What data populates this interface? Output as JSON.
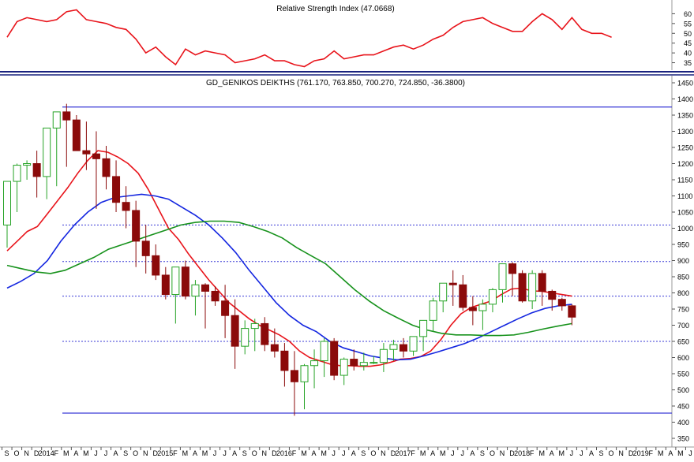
{
  "colors": {
    "rsi_line": "#e8141b",
    "up_candle_border": "#26a326",
    "up_candle_fill": "#ffffff",
    "down_candle": "#8b0a0a",
    "ma_red": "#e8141b",
    "ma_blue": "#1426e0",
    "ma_green": "#17921c",
    "solid_levels": "#3a3ad6",
    "dotted_levels": "#3a3ad6",
    "separator": "#1a237e",
    "gridlines": "#9a9a9a"
  },
  "chart_data": [
    {
      "type": "line",
      "title": "Relative Strength Index (47.0668)",
      "y_ticks": [
        "60",
        "55",
        "50",
        "45",
        "40",
        "35"
      ],
      "ylim": [
        32,
        65
      ],
      "x_start": 0,
      "x_step": 1,
      "values": [
        48,
        56,
        58,
        57,
        56,
        57,
        61,
        62,
        57,
        56,
        55,
        53,
        52,
        47,
        40,
        43,
        38,
        34,
        42,
        39,
        41,
        40,
        39,
        35,
        36,
        37,
        39,
        36,
        36,
        34,
        33,
        36,
        37,
        41,
        37,
        38,
        39,
        39,
        41,
        43,
        44,
        42,
        44,
        47,
        49,
        53,
        56,
        57,
        58,
        55,
        53,
        51,
        51,
        56,
        60,
        57,
        52,
        58,
        52,
        50,
        50,
        48
      ]
    },
    {
      "type": "candlestick",
      "title": "GD_GENIKOS DEIKTHS (761.170, 763.850, 700.270, 724.850, -36.3800)",
      "y_ticks": [
        "1450",
        "1400",
        "1350",
        "1300",
        "1250",
        "1200",
        "1150",
        "1100",
        "1050",
        "1000",
        "950",
        "900",
        "850",
        "800",
        "750",
        "700",
        "650",
        "600",
        "550",
        "500",
        "450",
        "400",
        "350"
      ],
      "ylim": [
        335,
        1460
      ],
      "x_tick_labels": [
        "S",
        "O",
        "N",
        "D",
        "2014",
        "F",
        "M",
        "A",
        "M",
        "J",
        "J",
        "A",
        "S",
        "O",
        "N",
        "D",
        "2015",
        "F",
        "M",
        "A",
        "M",
        "J",
        "J",
        "A",
        "S",
        "O",
        "N",
        "D",
        "2016",
        "F",
        "M",
        "A",
        "M",
        "J",
        "J",
        "A",
        "S",
        "O",
        "N",
        "D",
        "2017",
        "F",
        "M",
        "A",
        "M",
        "J",
        "J",
        "A",
        "S",
        "O",
        "N",
        "D",
        "2018",
        "F",
        "M",
        "A",
        "M",
        "J",
        "J",
        "A",
        "S",
        "O",
        "N",
        "D",
        "2019",
        "F",
        "M",
        "A",
        "M",
        "J"
      ],
      "candles": {
        "open": [
          1010,
          1145,
          1195,
          1200,
          1160,
          1310,
          1360,
          1335,
          1240,
          1230,
          1215,
          1160,
          1080,
          1055,
          960,
          915,
          855,
          795,
          880,
          790,
          825,
          805,
          775,
          730,
          635,
          690,
          705,
          640,
          620,
          560,
          525,
          575,
          590,
          650,
          545,
          595,
          575,
          585,
          585,
          625,
          640,
          620,
          665,
          715,
          775,
          830,
          825,
          755,
          745,
          765,
          810,
          890,
          860,
          775,
          860,
          805,
          780,
          760
        ],
        "high": [
          1080,
          1200,
          1210,
          1240,
          1240,
          1360,
          1385,
          1350,
          1330,
          1300,
          1255,
          1210,
          1130,
          1085,
          1010,
          950,
          880,
          810,
          900,
          840,
          830,
          820,
          825,
          780,
          715,
          720,
          725,
          690,
          645,
          620,
          580,
          625,
          660,
          660,
          600,
          625,
          615,
          605,
          645,
          655,
          660,
          650,
          715,
          785,
          820,
          870,
          855,
          790,
          780,
          815,
          880,
          895,
          870,
          870,
          870,
          810,
          785,
          765
        ],
        "low": [
          940,
          1050,
          1150,
          1095,
          1090,
          1130,
          1190,
          1240,
          1180,
          1060,
          1120,
          1050,
          1000,
          880,
          860,
          840,
          780,
          705,
          780,
          730,
          690,
          760,
          660,
          565,
          610,
          620,
          620,
          600,
          510,
          420,
          440,
          505,
          540,
          530,
          515,
          560,
          560,
          580,
          555,
          590,
          600,
          605,
          620,
          680,
          740,
          760,
          745,
          700,
          685,
          740,
          770,
          790,
          770,
          750,
          760,
          745,
          745,
          700
        ],
        "close": [
          1145,
          1195,
          1200,
          1160,
          1310,
          1360,
          1335,
          1240,
          1230,
          1215,
          1160,
          1080,
          1055,
          960,
          915,
          855,
          795,
          880,
          790,
          825,
          805,
          775,
          730,
          635,
          690,
          705,
          640,
          620,
          560,
          525,
          575,
          590,
          650,
          545,
          595,
          575,
          585,
          585,
          625,
          640,
          620,
          665,
          715,
          775,
          830,
          825,
          755,
          745,
          765,
          810,
          890,
          860,
          775,
          860,
          805,
          780,
          760,
          725
        ]
      },
      "series": [
        {
          "color_key": "ma_red",
          "x_start": 0,
          "values": [
            930,
            960,
            990,
            1005,
            1045,
            1085,
            1125,
            1170,
            1210,
            1240,
            1235,
            1220,
            1200,
            1170,
            1120,
            1060,
            1000,
            965,
            920,
            880,
            840,
            805,
            770,
            745,
            720,
            700,
            685,
            670,
            650,
            620,
            600,
            590,
            580,
            575,
            575,
            573,
            573,
            577,
            585,
            595,
            597,
            603,
            620,
            655,
            700,
            735,
            755,
            765,
            775,
            795,
            812,
            815,
            806,
            805,
            800,
            795,
            790
          ]
        },
        {
          "color_key": "ma_blue",
          "x_start": 0,
          "values": [
            815,
            835,
            860,
            900,
            960,
            1010,
            1050,
            1080,
            1095,
            1100,
            1105,
            1100,
            1090,
            1065,
            1040,
            1010,
            970,
            925,
            870,
            820,
            770,
            730,
            700,
            680,
            650,
            630,
            618,
            605,
            598,
            593,
            595,
            605,
            617,
            630,
            643,
            660,
            680,
            700,
            720,
            738,
            752,
            760,
            765
          ]
        },
        {
          "color_key": "ma_green",
          "x_start": 0,
          "values": [
            885,
            875,
            865,
            860,
            870,
            890,
            910,
            935,
            950,
            965,
            980,
            995,
            1010,
            1018,
            1022,
            1022,
            1018,
            1005,
            990,
            970,
            940,
            915,
            890,
            850,
            810,
            775,
            745,
            722,
            700,
            685,
            675,
            670,
            670,
            668,
            668,
            670,
            678,
            688,
            697,
            705
          ]
        }
      ],
      "hlines_solid": [
        1375,
        428
      ],
      "hlines_dotted": [
        1010,
        897,
        790,
        650
      ]
    }
  ]
}
